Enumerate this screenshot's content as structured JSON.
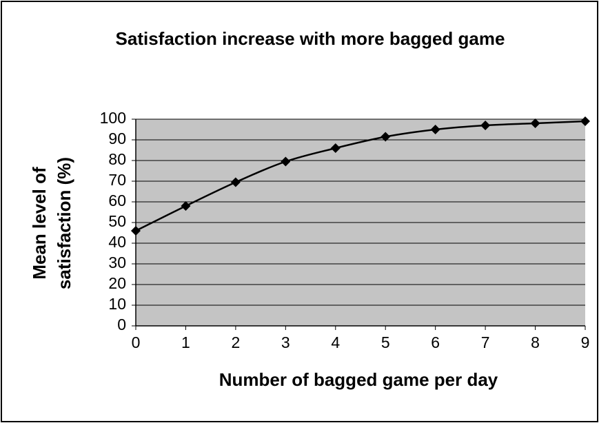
{
  "chart_data": {
    "type": "line",
    "title": "Satisfaction increase with more bagged game",
    "xlabel": "Number of bagged game per day",
    "ylabel": "Mean level of satisfaction (%)",
    "x": [
      0,
      1,
      2,
      3,
      4,
      5,
      6,
      7,
      8,
      9
    ],
    "series": [
      {
        "name": "Mean level of satisfaction",
        "color": "#000000",
        "values": [
          46,
          58,
          69.5,
          79.5,
          86,
          91.5,
          95,
          97,
          98,
          99
        ]
      }
    ],
    "xlim": [
      0,
      9
    ],
    "xticks": [
      0,
      1,
      2,
      3,
      4,
      5,
      6,
      7,
      8,
      9
    ],
    "ylim": [
      0,
      100
    ],
    "yticks": [
      0,
      10,
      20,
      30,
      40,
      50,
      60,
      70,
      80,
      90,
      100
    ],
    "grid": true,
    "plot_background": "#c4c4c4"
  }
}
